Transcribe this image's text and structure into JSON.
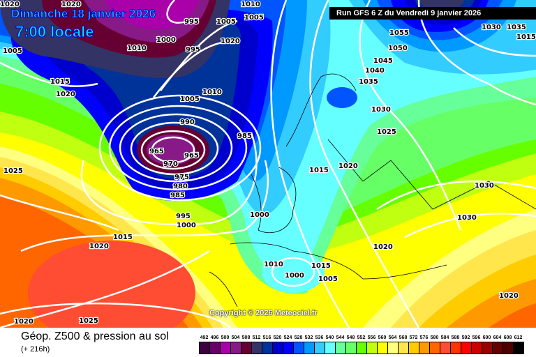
{
  "header": {
    "date": "Dimanche 18 janvier 2026",
    "time": "7:00 locale",
    "run": "Run GFS 6 Z du Vendredi 9 janvier 2026"
  },
  "map": {
    "copyright": "Copyright © 2026 Meteociel.fr",
    "pressure_labels": [
      "1020",
      "1020",
      "1005",
      "995",
      "1005",
      "1010",
      "995",
      "1010",
      "1005",
      "1000",
      "1020",
      "1055",
      "1030",
      "1035",
      "1015",
      "1015",
      "1020",
      "1010",
      "1050",
      "1045",
      "1040",
      "1035",
      "1005",
      "990",
      "1030",
      "1025",
      "965",
      "965",
      "985",
      "970",
      "975",
      "980",
      "985",
      "1025",
      "1015",
      "1020",
      "995",
      "1000",
      "1000",
      "1030",
      "1030",
      "1015",
      "1020",
      "1020",
      "1010",
      "1000",
      "1005",
      "1015",
      "1020",
      "1020",
      "1025"
    ]
  },
  "footer": {
    "title": "Géop. Z500 & pression au sol",
    "subtitle": "(+ 216h)"
  },
  "legend": [
    {
      "label": "492",
      "color": "#3d0040"
    },
    {
      "label": "496",
      "color": "#660066"
    },
    {
      "label": "500",
      "color": "#aa00aa"
    },
    {
      "label": "504",
      "color": "#881a88"
    },
    {
      "label": "508",
      "color": "#660033"
    },
    {
      "label": "512",
      "color": "#333366"
    },
    {
      "label": "516",
      "color": "#003399"
    },
    {
      "label": "520",
      "color": "#0000cc"
    },
    {
      "label": "524",
      "color": "#0000ff"
    },
    {
      "label": "528",
      "color": "#0055ff"
    },
    {
      "label": "532",
      "color": "#0099ff"
    },
    {
      "label": "536",
      "color": "#33ccff"
    },
    {
      "label": "540",
      "color": "#66ffff"
    },
    {
      "label": "544",
      "color": "#66ff99"
    },
    {
      "label": "548",
      "color": "#66ff66"
    },
    {
      "label": "552",
      "color": "#66ff00"
    },
    {
      "label": "556",
      "color": "#c0ff10"
    },
    {
      "label": "560",
      "color": "#ffff00"
    },
    {
      "label": "564",
      "color": "#ffff80"
    },
    {
      "label": "568",
      "color": "#ffe64d"
    },
    {
      "label": "572",
      "color": "#ffcc00"
    },
    {
      "label": "576",
      "color": "#ff9900"
    },
    {
      "label": "580",
      "color": "#ff6600"
    },
    {
      "label": "584",
      "color": "#ff4d33"
    },
    {
      "label": "588",
      "color": "#ff3300"
    },
    {
      "label": "592",
      "color": "#ff0000"
    },
    {
      "label": "596",
      "color": "#cc0000"
    },
    {
      "label": "600",
      "color": "#990000"
    },
    {
      "label": "604",
      "color": "#660000"
    },
    {
      "label": "608",
      "color": "#4d0000"
    },
    {
      "label": "612",
      "color": "#000000"
    }
  ]
}
